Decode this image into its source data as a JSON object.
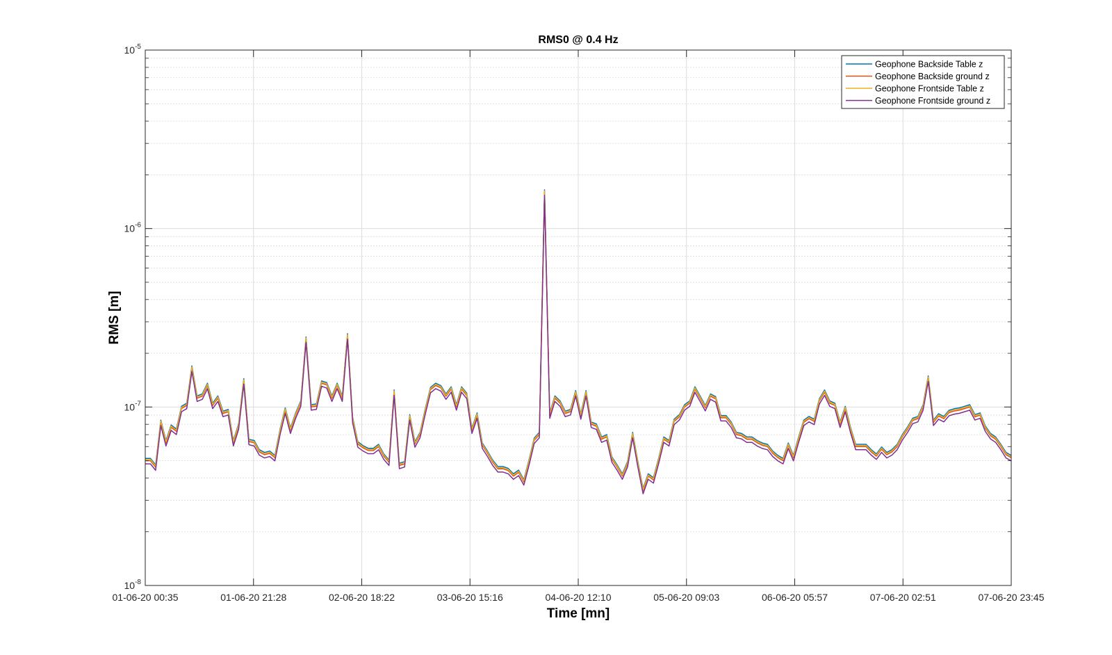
{
  "chart_data": {
    "type": "line",
    "title": "RMS0 @ 0.4 Hz",
    "xlabel": "Time [mn]",
    "ylabel": "RMS [m]",
    "yscale": "log",
    "ylim": [
      1e-08,
      1e-05
    ],
    "y_ticks": [
      {
        "base": "10",
        "exp": "-8",
        "value": 1e-08
      },
      {
        "base": "10",
        "exp": "-7",
        "value": 1e-07
      },
      {
        "base": "10",
        "exp": "-6",
        "value": 1e-06
      },
      {
        "base": "10",
        "exp": "-5",
        "value": 1e-05
      }
    ],
    "x_ticks": [
      "01-06-20 00:35",
      "01-06-20 21:28",
      "02-06-20 18:22",
      "03-06-20 15:16",
      "04-06-20 12:10",
      "05-06-20 09:03",
      "06-06-20 05:57",
      "07-06-20 02:51",
      "07-06-20 23:45"
    ],
    "x_start": "01-06-20 00:35",
    "x_end": "07-06-20 23:45",
    "grid": true,
    "minor_grid": true,
    "legend_position": "top-right",
    "series": [
      {
        "name": "Geophone Backside Table z",
        "color": "#0072BD",
        "offset": 1.03
      },
      {
        "name": "Geophone Backside ground z",
        "color": "#D95319",
        "offset": 1.0
      },
      {
        "name": "Geophone Frontside Table z",
        "color": "#EDB120",
        "offset": 1.015
      },
      {
        "name": "Geophone Frontside ground z",
        "color": "#7E2F8E",
        "offset": 0.96
      }
    ],
    "base_values_e7": [
      0.5,
      0.5,
      0.46,
      0.82,
      0.63,
      0.77,
      0.73,
      0.98,
      1.02,
      1.65,
      1.12,
      1.15,
      1.32,
      1.02,
      1.12,
      0.92,
      0.94,
      0.63,
      0.78,
      1.4,
      0.64,
      0.63,
      0.56,
      0.54,
      0.55,
      0.52,
      0.73,
      0.96,
      0.74,
      0.9,
      1.05,
      2.4,
      1.0,
      1.01,
      1.36,
      1.33,
      1.12,
      1.32,
      1.12,
      2.5,
      0.85,
      0.62,
      0.59,
      0.57,
      0.57,
      0.6,
      0.53,
      0.49,
      1.21,
      0.47,
      0.48,
      0.88,
      0.62,
      0.7,
      0.95,
      1.25,
      1.32,
      1.28,
      1.15,
      1.26,
      1.0,
      1.26,
      1.16,
      0.74,
      0.9,
      0.61,
      0.55,
      0.49,
      0.45,
      0.45,
      0.44,
      0.41,
      0.43,
      0.38,
      0.49,
      0.65,
      0.7,
      16.0,
      0.9,
      1.12,
      1.05,
      0.92,
      0.94,
      1.2,
      0.89,
      1.2,
      0.8,
      0.78,
      0.66,
      0.68,
      0.51,
      0.46,
      0.41,
      0.48,
      0.7,
      0.48,
      0.34,
      0.41,
      0.39,
      0.5,
      0.66,
      0.63,
      0.83,
      0.88,
      1.0,
      1.05,
      1.26,
      1.12,
      0.99,
      1.15,
      1.11,
      0.87,
      0.87,
      0.8,
      0.7,
      0.69,
      0.66,
      0.66,
      0.63,
      0.61,
      0.6,
      0.55,
      0.52,
      0.5,
      0.61,
      0.52,
      0.66,
      0.82,
      0.86,
      0.83,
      1.08,
      1.21,
      1.05,
      1.02,
      0.8,
      0.98,
      0.75,
      0.6,
      0.6,
      0.6,
      0.56,
      0.53,
      0.58,
      0.54,
      0.56,
      0.6,
      0.68,
      0.75,
      0.84,
      0.86,
      1.0,
      1.45,
      0.82,
      0.89,
      0.86,
      0.93,
      0.95,
      0.96,
      0.98,
      1.0,
      0.88,
      0.9,
      0.76,
      0.69,
      0.66,
      0.6,
      0.54,
      0.52
    ]
  }
}
